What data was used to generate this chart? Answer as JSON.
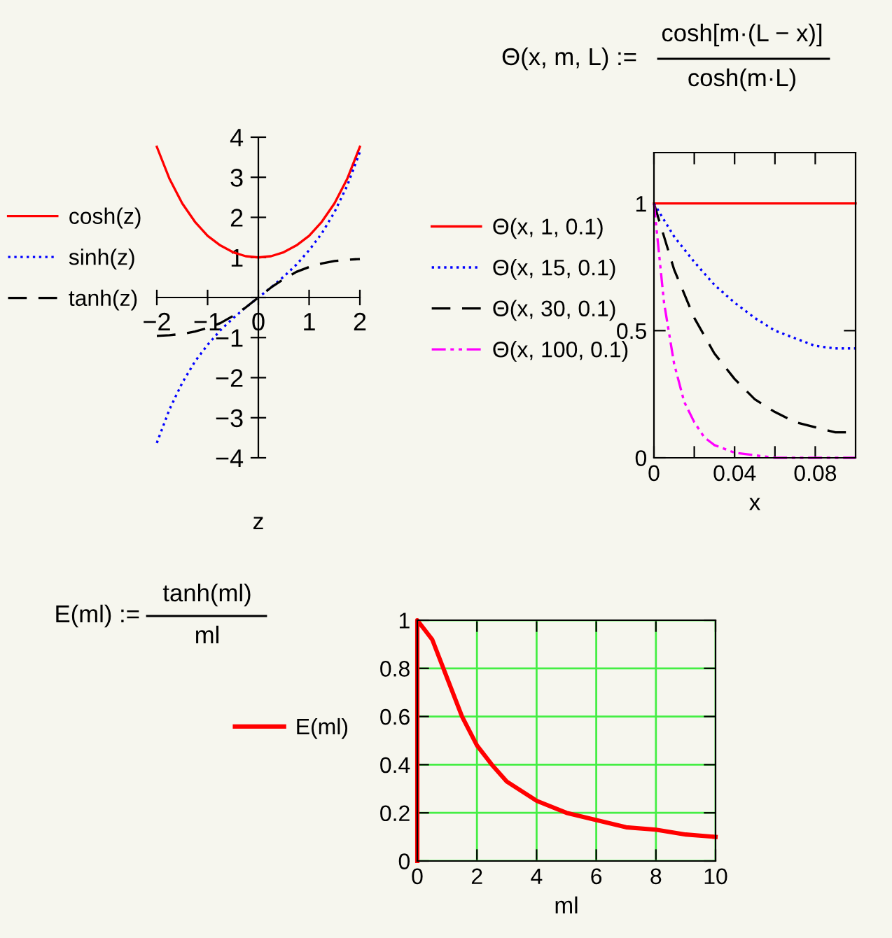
{
  "chart_data": [
    {
      "type": "line",
      "xlabel": "z",
      "x": [
        -2,
        -1.75,
        -1.5,
        -1.25,
        -1,
        -0.75,
        -0.5,
        -0.25,
        0,
        0.25,
        0.5,
        0.75,
        1,
        1.25,
        1.5,
        1.75,
        2
      ],
      "series": [
        {
          "name": "cosh(z)",
          "color": "#ff0000",
          "line_style": "solid",
          "values": [
            3.76,
            2.96,
            2.35,
            1.89,
            1.54,
            1.3,
            1.13,
            1.03,
            1,
            1.03,
            1.13,
            1.3,
            1.54,
            1.89,
            2.35,
            2.96,
            3.76
          ]
        },
        {
          "name": "sinh(z)",
          "color": "#0000ff",
          "line_style": "dotted",
          "values": [
            -3.63,
            -2.79,
            -2.13,
            -1.6,
            -1.18,
            -0.82,
            -0.52,
            -0.25,
            0,
            0.25,
            0.52,
            0.82,
            1.18,
            1.6,
            2.13,
            2.79,
            3.63
          ]
        },
        {
          "name": "tanh(z)",
          "color": "#000000",
          "line_style": "dashed",
          "values": [
            -0.96,
            -0.94,
            -0.91,
            -0.85,
            -0.76,
            -0.64,
            -0.46,
            -0.25,
            0,
            0.25,
            0.46,
            0.64,
            0.76,
            0.85,
            0.91,
            0.94,
            0.96
          ]
        }
      ],
      "xlim": [
        -2,
        2
      ],
      "ylim": [
        -4,
        4
      ],
      "xticks": [
        {
          "value": -2,
          "label": "−2"
        },
        {
          "value": -1,
          "label": "−1"
        },
        0,
        1,
        2
      ],
      "yticks": [
        {
          "value": -4,
          "label": "−4"
        },
        {
          "value": -3,
          "label": "−3"
        },
        {
          "value": -2,
          "label": "−2"
        },
        {
          "value": -1,
          "label": "−1"
        },
        {
          "value": 0,
          "label": null
        },
        1,
        2,
        3,
        4
      ],
      "grid": false,
      "legend": "left",
      "marker": "none"
    },
    {
      "type": "line",
      "xlabel": "x",
      "x": [
        0,
        0.01,
        0.02,
        0.03,
        0.04,
        0.05,
        0.06,
        0.07,
        0.08,
        0.09,
        0.1
      ],
      "series": [
        {
          "name": "Θ(x, 1, 0.1)",
          "color": "#ff0000",
          "line_style": "solid",
          "values": [
            1,
            1,
            1,
            1,
            1,
            1,
            1,
            1,
            1,
            1,
            1
          ]
        },
        {
          "name": "Θ(x, 15, 0.1)",
          "color": "#0000ff",
          "line_style": "dotted",
          "values": [
            1,
            0.87,
            0.77,
            0.68,
            0.61,
            0.55,
            0.5,
            0.47,
            0.44,
            0.43,
            0.43
          ]
        },
        {
          "name": "Θ(x, 30, 0.1)",
          "color": "#000000",
          "line_style": "dashed",
          "values": [
            1,
            0.74,
            0.55,
            0.41,
            0.31,
            0.23,
            0.18,
            0.14,
            0.12,
            0.1,
            0.1
          ]
        },
        {
          "name": "Θ(x, 100, 0.1)",
          "color": "#ff00ff",
          "line_style": "dashdot",
          "x": [
            0,
            0.005,
            0.01,
            0.015,
            0.02,
            0.025,
            0.03,
            0.04,
            0.05,
            0.06,
            0.08,
            0.1
          ],
          "values": [
            1,
            0.61,
            0.37,
            0.22,
            0.14,
            0.08,
            0.05,
            0.02,
            0.01,
            0,
            0,
            0
          ]
        }
      ],
      "xlim": [
        0,
        0.1
      ],
      "ylim": [
        0,
        1.2
      ],
      "xticks": [
        0,
        {
          "value": 0.02,
          "label": null
        },
        0.04,
        {
          "value": 0.06,
          "label": null
        },
        0.08
      ],
      "yticks": [
        0,
        0.5,
        1
      ],
      "grid": false,
      "legend": "left",
      "marker": "none",
      "annotations": [
        "Θ(x, m, L) :=",
        "cosh[m·(L − x)]",
        "cosh(m·L)"
      ]
    },
    {
      "type": "line",
      "xlabel": "ml",
      "x": [
        0,
        0,
        0.5,
        1,
        1.5,
        2,
        2.5,
        3,
        4,
        5,
        6,
        7,
        8,
        9,
        10
      ],
      "series": [
        {
          "name": "E(ml)",
          "color": "#ff0000",
          "line_style": "solid",
          "values": [
            0,
            1,
            0.92,
            0.76,
            0.6,
            0.48,
            0.4,
            0.33,
            0.25,
            0.2,
            0.17,
            0.14,
            0.13,
            0.11,
            0.1
          ]
        }
      ],
      "xlim": [
        0,
        10
      ],
      "ylim": [
        0,
        1
      ],
      "xticks": [
        0,
        2,
        4,
        6,
        8,
        10
      ],
      "yticks": [
        0,
        0.2,
        0.4,
        0.6,
        0.8,
        1
      ],
      "grid": true,
      "legend": "left",
      "marker": "none",
      "annotations": [
        "E(ml) :=",
        "tanh(ml)",
        "ml"
      ]
    }
  ]
}
